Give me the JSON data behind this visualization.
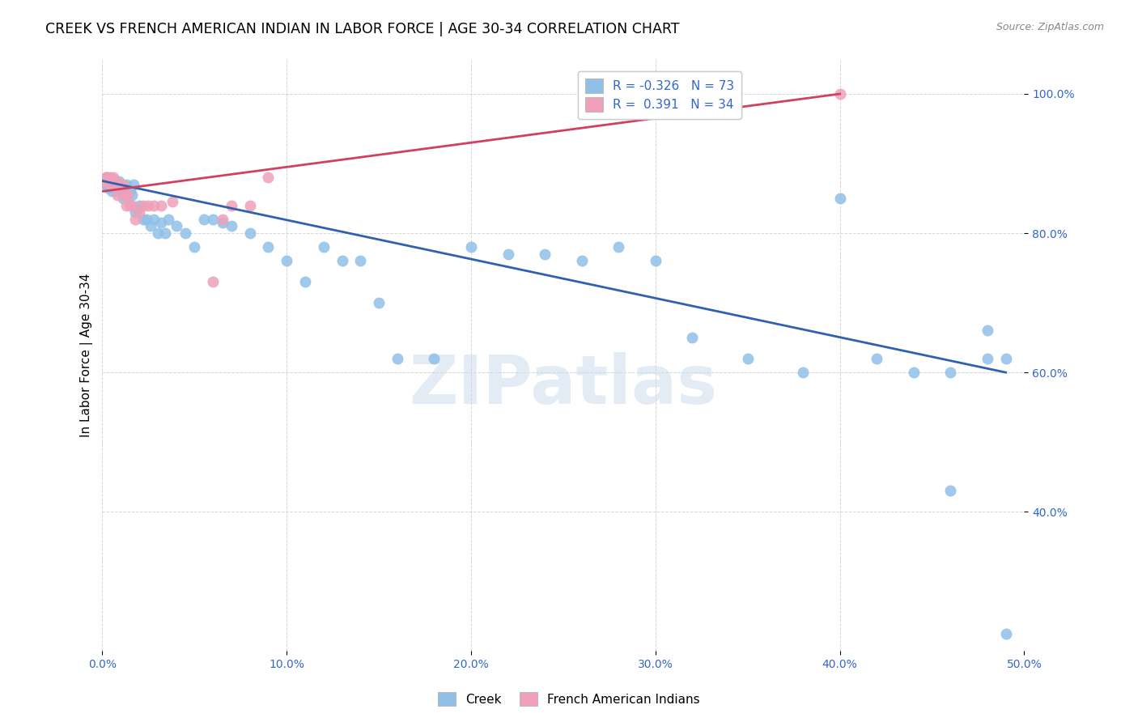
{
  "title": "CREEK VS FRENCH AMERICAN INDIAN IN LABOR FORCE | AGE 30-34 CORRELATION CHART",
  "source": "Source: ZipAtlas.com",
  "ylabel": "In Labor Force | Age 30-34",
  "xlim": [
    0.0,
    0.5
  ],
  "ylim": [
    0.2,
    1.05
  ],
  "xticks": [
    0.0,
    0.1,
    0.2,
    0.3,
    0.4,
    0.5
  ],
  "yticks": [
    0.4,
    0.6,
    0.8,
    1.0
  ],
  "ytick_labels": [
    "40.0%",
    "60.0%",
    "80.0%",
    "100.0%"
  ],
  "xtick_labels": [
    "0.0%",
    "10.0%",
    "20.0%",
    "30.0%",
    "40.0%",
    "50.0%"
  ],
  "creek_color": "#90C0E8",
  "french_color": "#F0A0B8",
  "creek_R": -0.326,
  "creek_N": 73,
  "french_R": 0.391,
  "french_N": 34,
  "creek_line_color": "#3060B0",
  "french_line_color": "#D04060",
  "watermark_text": "ZIPatlas",
  "creek_x": [
    0.0,
    0.001,
    0.002,
    0.002,
    0.003,
    0.003,
    0.004,
    0.004,
    0.005,
    0.005,
    0.006,
    0.006,
    0.007,
    0.007,
    0.008,
    0.008,
    0.009,
    0.009,
    0.01,
    0.01,
    0.011,
    0.012,
    0.013,
    0.014,
    0.015,
    0.016,
    0.017,
    0.018,
    0.019,
    0.02,
    0.022,
    0.024,
    0.026,
    0.028,
    0.03,
    0.032,
    0.034,
    0.036,
    0.04,
    0.045,
    0.05,
    0.055,
    0.06,
    0.065,
    0.07,
    0.08,
    0.09,
    0.1,
    0.11,
    0.12,
    0.13,
    0.14,
    0.15,
    0.16,
    0.18,
    0.2,
    0.22,
    0.24,
    0.26,
    0.28,
    0.3,
    0.32,
    0.35,
    0.38,
    0.4,
    0.42,
    0.44,
    0.46,
    0.48,
    0.49,
    0.48,
    0.46,
    0.49
  ],
  "creek_y": [
    0.875,
    0.875,
    0.87,
    0.88,
    0.875,
    0.865,
    0.88,
    0.875,
    0.875,
    0.86,
    0.875,
    0.87,
    0.875,
    0.865,
    0.87,
    0.86,
    0.865,
    0.875,
    0.87,
    0.86,
    0.85,
    0.855,
    0.87,
    0.855,
    0.86,
    0.855,
    0.87,
    0.83,
    0.835,
    0.84,
    0.82,
    0.82,
    0.81,
    0.82,
    0.8,
    0.815,
    0.8,
    0.82,
    0.81,
    0.8,
    0.78,
    0.82,
    0.82,
    0.815,
    0.81,
    0.8,
    0.78,
    0.76,
    0.73,
    0.78,
    0.76,
    0.76,
    0.7,
    0.62,
    0.62,
    0.78,
    0.77,
    0.77,
    0.76,
    0.78,
    0.76,
    0.65,
    0.62,
    0.6,
    0.85,
    0.62,
    0.6,
    0.43,
    0.62,
    0.62,
    0.66,
    0.6,
    0.225
  ],
  "french_x": [
    0.0,
    0.001,
    0.002,
    0.003,
    0.003,
    0.004,
    0.004,
    0.005,
    0.006,
    0.006,
    0.007,
    0.008,
    0.008,
    0.009,
    0.01,
    0.011,
    0.012,
    0.013,
    0.014,
    0.015,
    0.016,
    0.018,
    0.02,
    0.022,
    0.025,
    0.028,
    0.032,
    0.038,
    0.06,
    0.065,
    0.07,
    0.08,
    0.09,
    0.4
  ],
  "french_y": [
    0.875,
    0.875,
    0.88,
    0.88,
    0.875,
    0.875,
    0.87,
    0.875,
    0.88,
    0.875,
    0.875,
    0.855,
    0.87,
    0.87,
    0.87,
    0.87,
    0.855,
    0.84,
    0.855,
    0.84,
    0.84,
    0.82,
    0.83,
    0.84,
    0.84,
    0.84,
    0.84,
    0.845,
    0.73,
    0.82,
    0.84,
    0.84,
    0.88,
    1.0
  ],
  "creek_line_x": [
    0.0,
    0.49
  ],
  "creek_line_y": [
    0.875,
    0.6
  ],
  "french_line_x": [
    0.0,
    0.4
  ],
  "french_line_y": [
    0.86,
    1.0
  ]
}
